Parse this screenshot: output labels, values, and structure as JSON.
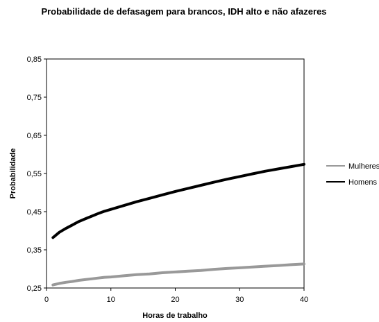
{
  "chart_data": {
    "type": "line",
    "title": "Probabilidade de defasagem para brancos, IDH alto e não afazeres",
    "xlabel": "Horas de trabalho",
    "ylabel": "Probabilidade",
    "xlim": [
      0,
      40
    ],
    "ylim": [
      0.25,
      0.85
    ],
    "x_ticks": [
      "0",
      "10",
      "20",
      "30",
      "40"
    ],
    "y_ticks": [
      "0,25",
      "0,35",
      "0,45",
      "0,55",
      "0,65",
      "0,75",
      "0,85"
    ],
    "grid": false,
    "legend_position": "right",
    "x": [
      1,
      2,
      3,
      4,
      5,
      6,
      7,
      8,
      9,
      10,
      12,
      14,
      16,
      18,
      20,
      22,
      24,
      26,
      28,
      30,
      32,
      34,
      36,
      38,
      40
    ],
    "series": [
      {
        "name": "Mulheres",
        "color": "#999999",
        "values": [
          0.258,
          0.262,
          0.265,
          0.267,
          0.27,
          0.272,
          0.274,
          0.276,
          0.278,
          0.279,
          0.282,
          0.285,
          0.287,
          0.29,
          0.292,
          0.294,
          0.296,
          0.299,
          0.301,
          0.303,
          0.305,
          0.307,
          0.309,
          0.311,
          0.313
        ]
      },
      {
        "name": "Homens",
        "color": "#000000",
        "values": [
          0.382,
          0.396,
          0.406,
          0.415,
          0.424,
          0.431,
          0.438,
          0.445,
          0.451,
          0.456,
          0.466,
          0.476,
          0.485,
          0.494,
          0.503,
          0.511,
          0.519,
          0.527,
          0.535,
          0.542,
          0.549,
          0.556,
          0.562,
          0.568,
          0.574
        ]
      }
    ]
  }
}
